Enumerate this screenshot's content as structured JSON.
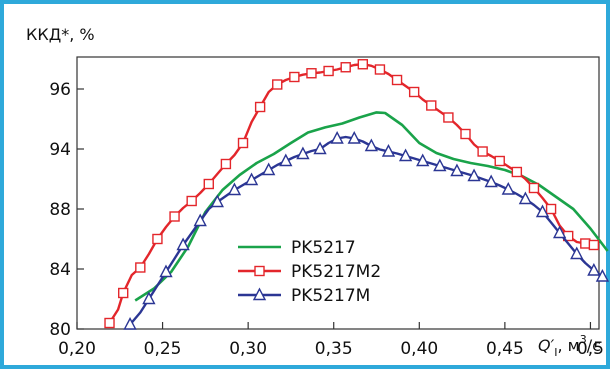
{
  "chart_data": {
    "type": "line",
    "ylabel": "ККД*, %",
    "xlabel_main": "Q′",
    "xlabel_sub": "I",
    "xlabel_unit": ", м",
    "xlabel_exp": "3",
    "xlabel_tail": "/с",
    "xlim": [
      0.2,
      0.505
    ],
    "y_ticks": [
      {
        "label": "80",
        "value": 80
      },
      {
        "label": "84",
        "value": 84
      },
      {
        "label": "88",
        "value": 88
      },
      {
        "label": "94",
        "value": 94
      },
      {
        "label": "96",
        "value": 96
      }
    ],
    "x_ticks": [
      {
        "label": "0,20",
        "value": 0.2
      },
      {
        "label": "0,25",
        "value": 0.25
      },
      {
        "label": "0,30",
        "value": 0.3
      },
      {
        "label": "0,35",
        "value": 0.35
      },
      {
        "label": "0,40",
        "value": 0.4
      },
      {
        "label": "0,45",
        "value": 0.45
      },
      {
        "label": "0,5",
        "value": 0.5
      }
    ],
    "series": [
      {
        "name": "PK5217",
        "color": "#1aa34a",
        "marker": "none",
        "x": [
          0.234,
          0.245,
          0.255,
          0.265,
          0.275,
          0.285,
          0.295,
          0.305,
          0.315,
          0.325,
          0.335,
          0.345,
          0.355,
          0.365,
          0.375,
          0.38,
          0.39,
          0.4,
          0.41,
          0.42,
          0.43,
          0.44,
          0.45,
          0.46,
          0.47,
          0.48,
          0.49,
          0.5,
          0.51
        ],
        "y": [
          81.9,
          82.7,
          83.8,
          85.5,
          87.8,
          89.9,
          91.4,
          92.6,
          93.5,
          94.2,
          94.55,
          94.72,
          94.85,
          95.05,
          95.22,
          95.2,
          94.8,
          94.2,
          93.6,
          93.0,
          92.6,
          92.3,
          91.9,
          91.3,
          90.4,
          89.2,
          88.0,
          86.7,
          85.2
        ]
      },
      {
        "name": "PK5217M2",
        "color": "#e3262b",
        "marker": "square",
        "x": [
          0.219,
          0.224,
          0.227,
          0.232,
          0.237,
          0.242,
          0.247,
          0.252,
          0.257,
          0.262,
          0.267,
          0.272,
          0.277,
          0.282,
          0.287,
          0.292,
          0.297,
          0.302,
          0.307,
          0.312,
          0.317,
          0.322,
          0.327,
          0.332,
          0.337,
          0.342,
          0.347,
          0.352,
          0.357,
          0.362,
          0.367,
          0.372,
          0.377,
          0.382,
          0.387,
          0.392,
          0.397,
          0.402,
          0.407,
          0.412,
          0.417,
          0.422,
          0.427,
          0.432,
          0.437,
          0.442,
          0.447,
          0.452,
          0.457,
          0.462,
          0.467,
          0.472,
          0.477,
          0.482,
          0.487,
          0.492,
          0.497,
          0.502
        ],
        "y": [
          80.4,
          81.3,
          82.4,
          83.6,
          84.1,
          85.0,
          86.0,
          86.8,
          87.5,
          88.1,
          88.8,
          89.6,
          90.5,
          91.5,
          92.5,
          93.4,
          94.2,
          94.9,
          95.4,
          95.9,
          96.3,
          96.6,
          96.8,
          96.95,
          97.05,
          97.1,
          97.2,
          97.3,
          97.45,
          97.6,
          97.65,
          97.55,
          97.3,
          97.0,
          96.6,
          96.2,
          95.9,
          95.65,
          95.45,
          95.25,
          95.05,
          94.8,
          94.5,
          94.15,
          93.75,
          93.3,
          92.8,
          92.25,
          91.7,
          91.0,
          90.1,
          89.1,
          88.0,
          86.9,
          86.2,
          85.8,
          85.7,
          85.6
        ]
      },
      {
        "name": "PK5217M",
        "color": "#2b3694",
        "marker": "triangle",
        "x": [
          0.231,
          0.237,
          0.242,
          0.247,
          0.252,
          0.257,
          0.262,
          0.267,
          0.272,
          0.277,
          0.282,
          0.287,
          0.292,
          0.297,
          0.302,
          0.307,
          0.312,
          0.317,
          0.322,
          0.327,
          0.332,
          0.337,
          0.342,
          0.347,
          0.352,
          0.357,
          0.362,
          0.367,
          0.372,
          0.377,
          0.382,
          0.387,
          0.392,
          0.397,
          0.402,
          0.407,
          0.412,
          0.417,
          0.422,
          0.427,
          0.432,
          0.437,
          0.442,
          0.447,
          0.452,
          0.457,
          0.462,
          0.467,
          0.472,
          0.477,
          0.482,
          0.487,
          0.492,
          0.497,
          0.502,
          0.507
        ],
        "y": [
          80.3,
          81.1,
          82.0,
          82.9,
          83.8,
          84.7,
          85.6,
          86.4,
          87.2,
          88.0,
          88.7,
          89.3,
          89.9,
          90.4,
          90.9,
          91.4,
          91.9,
          92.4,
          92.8,
          93.2,
          93.5,
          93.8,
          94.0,
          94.2,
          94.35,
          94.4,
          94.35,
          94.25,
          94.1,
          93.95,
          93.75,
          93.55,
          93.3,
          93.05,
          92.8,
          92.55,
          92.3,
          92.05,
          91.8,
          91.55,
          91.3,
          91.0,
          90.7,
          90.35,
          89.95,
          89.5,
          89.0,
          88.4,
          87.8,
          87.1,
          86.4,
          85.7,
          85.0,
          84.4,
          83.9,
          83.5
        ]
      }
    ],
    "legend_position": "bottom-center"
  }
}
